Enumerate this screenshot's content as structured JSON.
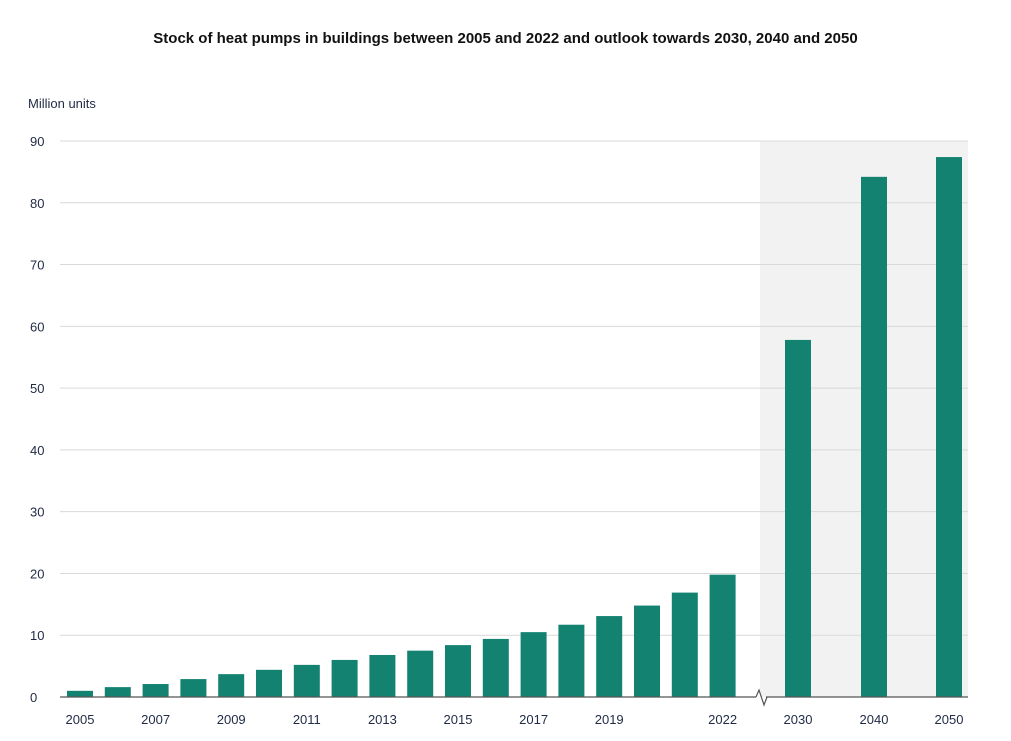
{
  "chart_data": {
    "type": "bar",
    "title": "Stock of heat pumps in buildings between 2005 and 2022 and outlook towards 2030, 2040 and 2050",
    "ylabel": "Million units",
    "xlabel": "",
    "ylim": [
      0,
      90
    ],
    "yticks": [
      "0",
      "10",
      "20",
      "30",
      "40",
      "50",
      "60",
      "70",
      "80",
      "90"
    ],
    "categories": [
      "2005",
      "2006",
      "2007",
      "2008",
      "2009",
      "2010",
      "2011",
      "2012",
      "2013",
      "2014",
      "2015",
      "2016",
      "2017",
      "2018",
      "2019",
      "2020",
      "2021",
      "2022",
      "2030",
      "2040",
      "2050"
    ],
    "values": [
      1.0,
      1.6,
      2.1,
      2.9,
      3.7,
      4.4,
      5.2,
      6.0,
      6.8,
      7.5,
      8.4,
      9.4,
      10.5,
      11.7,
      13.1,
      14.8,
      16.9,
      19.8,
      57.8,
      84.2,
      87.4
    ],
    "xtick_labels": [
      "2005",
      "",
      "2007",
      "",
      "2009",
      "",
      "2011",
      "",
      "2013",
      "",
      "2015",
      "",
      "2017",
      "",
      "2019",
      "",
      "",
      "2022",
      "2030",
      "2040",
      "2050"
    ],
    "outlook_categories": [
      "2030",
      "2040",
      "2050"
    ],
    "grid": true,
    "axis_break_between": [
      "2022",
      "2030"
    ]
  },
  "colors": {
    "bar": "#138271",
    "outlook_background": "#f2f2f2",
    "gridline": "#d9d9d9",
    "axis": "#555555",
    "text": "#1f2a44"
  }
}
